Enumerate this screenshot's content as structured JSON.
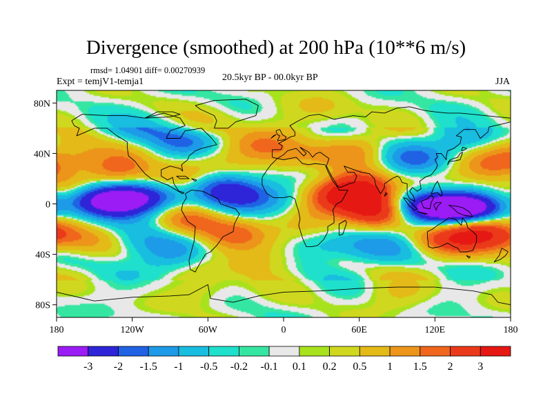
{
  "header": {
    "title": "Divergence (smoothed) at 200 hPa (10**6 m/s)",
    "stats": "rmsd= 1.04901 diff= 0.00270939",
    "experiment": "Expt = temjV1-temja1",
    "period": "20.5kyr BP - 00.0kyr BP",
    "season": "JJA"
  },
  "chart_data": {
    "type": "heatmap",
    "title": "Divergence (smoothed) at 200 hPa (10**6 m/s)",
    "projection": "cylindrical equidistant",
    "xlim": [
      -180,
      180
    ],
    "ylim": [
      -90,
      90
    ],
    "x_ticks": [
      {
        "value": -180,
        "label": "180"
      },
      {
        "value": -120,
        "label": "120W"
      },
      {
        "value": -60,
        "label": "60W"
      },
      {
        "value": 0,
        "label": "0"
      },
      {
        "value": 60,
        "label": "60E"
      },
      {
        "value": 120,
        "label": "120E"
      },
      {
        "value": 180,
        "label": "180"
      }
    ],
    "y_ticks": [
      {
        "value": 80,
        "label": "80N"
      },
      {
        "value": 40,
        "label": "40N"
      },
      {
        "value": 0,
        "label": "0"
      },
      {
        "value": -40,
        "label": "40S"
      },
      {
        "value": -80,
        "label": "80S"
      }
    ],
    "colorbar": {
      "labels": [
        "-3",
        "-2",
        "-1.5",
        "-1",
        "-0.5",
        "-0.2",
        "-0.1",
        "0.1",
        "0.2",
        "0.5",
        "1",
        "1.5",
        "2",
        "3"
      ],
      "colors": [
        "#9b1cf5",
        "#2e24d8",
        "#1f62e4",
        "#1d9ae8",
        "#18bde0",
        "#1ee0cc",
        "#35e6a2",
        "#e8e8e8",
        "#a8e21c",
        "#cfd81e",
        "#e3ba17",
        "#ec951a",
        "#ef661c",
        "#eb3a1a",
        "#e51814"
      ]
    },
    "features": [
      {
        "lon": 136,
        "lat": -4,
        "value": -3.4
      },
      {
        "lon": 105,
        "lat": -3,
        "value": -2.8
      },
      {
        "lon": 160,
        "lat": -2,
        "value": -2.2
      },
      {
        "lon": -150,
        "lat": 5,
        "value": -2.4
      },
      {
        "lon": -125,
        "lat": 3,
        "value": -2.8
      },
      {
        "lon": -100,
        "lat": 5,
        "value": -1.8
      },
      {
        "lon": -50,
        "lat": 15,
        "value": -1.7
      },
      {
        "lon": -30,
        "lat": 8,
        "value": -1.3
      },
      {
        "lon": 60,
        "lat": 12,
        "value": 3.3
      },
      {
        "lon": 75,
        "lat": -5,
        "value": 3.0
      },
      {
        "lon": 45,
        "lat": 5,
        "value": 2.4
      },
      {
        "lon": 150,
        "lat": -20,
        "value": 2.3
      },
      {
        "lon": 170,
        "lat": -25,
        "value": 1.8
      },
      {
        "lon": 125,
        "lat": -30,
        "value": 1.4
      },
      {
        "lon": 165,
        "lat": 30,
        "value": 1.8
      },
      {
        "lon": -130,
        "lat": 28,
        "value": 1.7
      },
      {
        "lon": -170,
        "lat": 40,
        "value": 1.2
      },
      {
        "lon": -85,
        "lat": 20,
        "value": 1.6
      },
      {
        "lon": -75,
        "lat": -15,
        "value": 1.5
      },
      {
        "lon": -40,
        "lat": -25,
        "value": 1.3
      },
      {
        "lon": 20,
        "lat": -15,
        "value": 1.1
      },
      {
        "lon": 5,
        "lat": 35,
        "value": 1.3
      },
      {
        "lon": -20,
        "lat": 45,
        "value": 1.4
      },
      {
        "lon": 60,
        "lat": 45,
        "value": 1.0
      },
      {
        "lon": -80,
        "lat": 50,
        "value": -1.4
      },
      {
        "lon": -110,
        "lat": 60,
        "value": -1.0
      },
      {
        "lon": -60,
        "lat": 65,
        "value": 1.0
      },
      {
        "lon": 30,
        "lat": 75,
        "value": 1.0
      },
      {
        "lon": 105,
        "lat": 35,
        "value": -1.3
      },
      {
        "lon": 145,
        "lat": 50,
        "value": -1.2
      },
      {
        "lon": -120,
        "lat": -30,
        "value": -1.0
      },
      {
        "lon": -160,
        "lat": -30,
        "value": 0.9
      },
      {
        "lon": -90,
        "lat": -40,
        "value": -1.0
      },
      {
        "lon": 35,
        "lat": -35,
        "value": -1.0
      },
      {
        "lon": 70,
        "lat": -35,
        "value": -1.0
      },
      {
        "lon": -60,
        "lat": -70,
        "value": 0.8
      },
      {
        "lon": 90,
        "lat": -72,
        "value": 0.9
      },
      {
        "lon": 0,
        "lat": 5,
        "value": -1.2
      },
      {
        "lon": -170,
        "lat": 10,
        "value": 1.0
      },
      {
        "lon": -15,
        "lat": -45,
        "value": 1.0
      }
    ]
  }
}
